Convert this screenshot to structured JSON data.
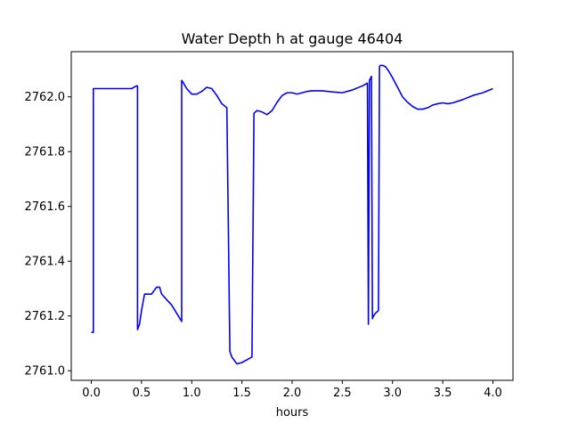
{
  "chart_data": {
    "type": "line",
    "title": "Water Depth h at gauge 46404",
    "xlabel": "hours",
    "ylabel": "",
    "xlim": [
      -0.2,
      4.2
    ],
    "ylim": [
      2760.965,
      2762.165
    ],
    "xticks": [
      0.0,
      0.5,
      1.0,
      1.5,
      2.0,
      2.5,
      3.0,
      3.5,
      4.0
    ],
    "xtick_labels": [
      "0.0",
      "0.5",
      "1.0",
      "1.5",
      "2.0",
      "2.5",
      "3.0",
      "3.5",
      "4.0"
    ],
    "yticks": [
      2761.0,
      2761.2,
      2761.4,
      2761.6,
      2761.8,
      2762.0
    ],
    "ytick_labels": [
      "2761.0",
      "2761.2",
      "2761.4",
      "2761.6",
      "2761.8",
      "2762.0"
    ],
    "grid": false,
    "series": [
      {
        "color": "#0000ff",
        "x": [
          0.0,
          0.02,
          0.02,
          0.2,
          0.4,
          0.45,
          0.46,
          0.46,
          0.48,
          0.5,
          0.53,
          0.56,
          0.6,
          0.65,
          0.68,
          0.7,
          0.75,
          0.8,
          0.85,
          0.9,
          0.9,
          0.91,
          0.95,
          1.0,
          1.05,
          1.1,
          1.15,
          1.2,
          1.25,
          1.3,
          1.35,
          1.38,
          1.38,
          1.4,
          1.45,
          1.5,
          1.55,
          1.6,
          1.62,
          1.62,
          1.65,
          1.7,
          1.75,
          1.8,
          1.85,
          1.9,
          1.95,
          2.0,
          2.05,
          2.1,
          2.15,
          2.2,
          2.3,
          2.4,
          2.5,
          2.6,
          2.7,
          2.75,
          2.76,
          2.77,
          2.79,
          2.8,
          2.81,
          2.83,
          2.86,
          2.87,
          2.88,
          2.9,
          2.93,
          2.96,
          3.0,
          3.05,
          3.1,
          3.15,
          3.2,
          3.25,
          3.3,
          3.35,
          3.4,
          3.45,
          3.5,
          3.55,
          3.6,
          3.7,
          3.8,
          3.9,
          4.0
        ],
        "y": [
          2761.14,
          2761.14,
          2762.03,
          2762.03,
          2762.03,
          2762.04,
          2762.04,
          2761.15,
          2761.17,
          2761.22,
          2761.28,
          2761.28,
          2761.28,
          2761.305,
          2761.305,
          2761.28,
          2761.26,
          2761.24,
          2761.21,
          2761.18,
          2762.06,
          2762.055,
          2762.03,
          2762.01,
          2762.01,
          2762.02,
          2762.035,
          2762.03,
          2762.005,
          2761.975,
          2761.96,
          2761.07,
          2761.07,
          2761.05,
          2761.025,
          2761.03,
          2761.04,
          2761.05,
          2761.94,
          2761.94,
          2761.95,
          2761.945,
          2761.935,
          2761.95,
          2761.98,
          2762.005,
          2762.015,
          2762.015,
          2762.01,
          2762.015,
          2762.02,
          2762.022,
          2762.022,
          2762.018,
          2762.015,
          2762.025,
          2762.04,
          2762.05,
          2761.17,
          2762.06,
          2762.075,
          2761.19,
          2761.2,
          2761.21,
          2761.22,
          2762.11,
          2762.115,
          2762.115,
          2762.11,
          2762.095,
          2762.07,
          2762.035,
          2762.0,
          2761.98,
          2761.965,
          2761.955,
          2761.955,
          2761.96,
          2761.97,
          2761.975,
          2761.978,
          2761.975,
          2761.978,
          2761.99,
          2762.005,
          2762.015,
          2762.03
        ]
      }
    ]
  }
}
